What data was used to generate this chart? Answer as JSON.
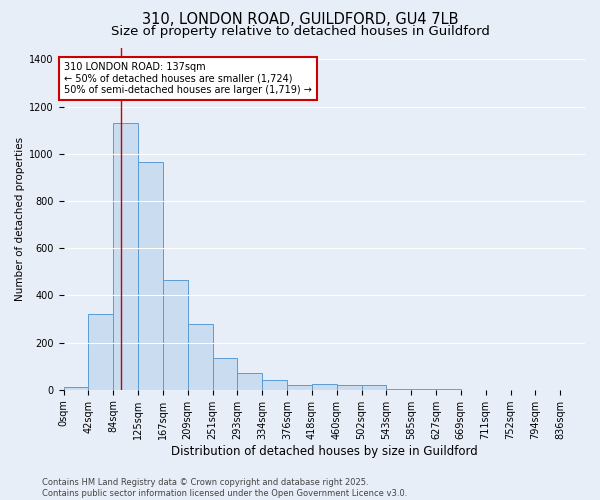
{
  "title": "310, LONDON ROAD, GUILDFORD, GU4 7LB",
  "subtitle": "Size of property relative to detached houses in Guildford",
  "xlabel": "Distribution of detached houses by size in Guildford",
  "ylabel": "Number of detached properties",
  "bar_labels": [
    "0sqm",
    "42sqm",
    "84sqm",
    "125sqm",
    "167sqm",
    "209sqm",
    "251sqm",
    "293sqm",
    "334sqm",
    "376sqm",
    "418sqm",
    "460sqm",
    "502sqm",
    "543sqm",
    "585sqm",
    "627sqm",
    "669sqm",
    "711sqm",
    "752sqm",
    "794sqm",
    "836sqm"
  ],
  "bar_values": [
    10,
    320,
    1130,
    965,
    465,
    280,
    135,
    70,
    40,
    22,
    25,
    22,
    18,
    5,
    2,
    1,
    0,
    0,
    0,
    0,
    0
  ],
  "bar_color": "#c9dcf0",
  "bar_edge_color": "#5b9bd5",
  "bar_edge_width": 0.7,
  "red_line_x": 2.32,
  "annotation_text": "310 LONDON ROAD: 137sqm\n← 50% of detached houses are smaller (1,724)\n50% of semi-detached houses are larger (1,719) →",
  "annotation_box_facecolor": "#ffffff",
  "annotation_box_edgecolor": "#cc0000",
  "ylim": [
    0,
    1450
  ],
  "yticks": [
    0,
    200,
    400,
    600,
    800,
    1000,
    1200,
    1400
  ],
  "bg_color": "#e8eef8",
  "grid_color": "#ffffff",
  "footer_text": "Contains HM Land Registry data © Crown copyright and database right 2025.\nContains public sector information licensed under the Open Government Licence v3.0.",
  "title_fontsize": 10.5,
  "subtitle_fontsize": 9.5,
  "xlabel_fontsize": 8.5,
  "ylabel_fontsize": 7.5,
  "tick_fontsize": 7,
  "annotation_fontsize": 7,
  "footer_fontsize": 6
}
